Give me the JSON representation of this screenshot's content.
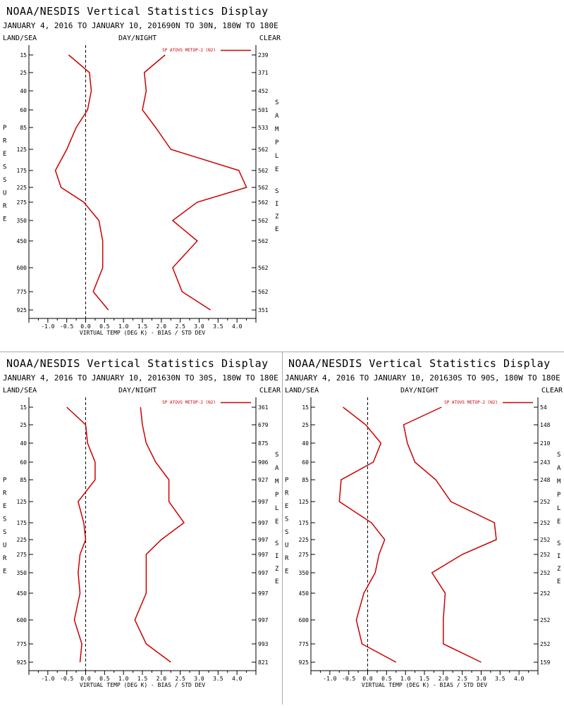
{
  "panels_common": {
    "title": "NOAA/NESDIS Vertical Statistics Display",
    "land_sea": "LAND/SEA",
    "day_night": "DAY/NIGHT",
    "clear": "CLEAR",
    "ylabel_letters": [
      "P",
      "R",
      "E",
      "S",
      "S",
      "U",
      "R",
      "E"
    ],
    "right_letters_1": [
      "S",
      "A",
      "M",
      "P",
      "L",
      "E"
    ],
    "right_letters_2": [
      "S",
      "I",
      "Z",
      "E"
    ],
    "xlabel": "VIRTUAL TEMP (DEG K) - BIAS / STD DEV",
    "x_ticks": [
      "-1.0",
      "-0.5",
      "0.0",
      "0.5",
      "1.0",
      "1.5",
      "2.0",
      "2.5",
      "3.0",
      "3.5",
      "4.0"
    ],
    "pressure_levels": [
      15,
      25,
      40,
      60,
      85,
      125,
      175,
      225,
      275,
      350,
      450,
      600,
      775,
      925
    ],
    "colors": {
      "series": "#cc0000",
      "axis": "#000000",
      "zero_line": "#000000",
      "divider": "#aaaaaa"
    }
  },
  "chart_data": [
    {
      "type": "line",
      "subtitle": "JANUARY 4, 2016 TO JANUARY 10, 201690N TO 30N, 180W TO 180E",
      "legend": "SP ATOVS METOP-2 (N2)",
      "xlim": [
        -1.5,
        4.5
      ],
      "sample_size": [
        "239",
        "371",
        "452",
        "501",
        "533",
        "562",
        "562",
        "562",
        "562",
        "562",
        "562",
        "562",
        "562",
        "351"
      ],
      "series": [
        {
          "role": "bias",
          "values": [
            -0.45,
            0.1,
            0.15,
            0.05,
            -0.25,
            -0.5,
            -0.8,
            -0.65,
            -0.05,
            0.35,
            0.45,
            0.45,
            0.2,
            0.6
          ]
        },
        {
          "role": "std_dev",
          "values": [
            2.1,
            1.55,
            1.6,
            1.5,
            1.85,
            2.25,
            4.05,
            4.25,
            2.95,
            2.3,
            2.95,
            2.3,
            2.55,
            3.3
          ]
        }
      ]
    },
    {
      "type": "line",
      "subtitle": "JANUARY 4, 2016 TO JANUARY 10, 201630N TO 30S, 180W TO 180E",
      "legend": "SP ATOVS METOP-2 (N2)",
      "xlim": [
        -1.5,
        4.5
      ],
      "sample_size": [
        "361",
        "679",
        "875",
        "906",
        "927",
        "997",
        "997",
        "997",
        "997",
        "997",
        "997",
        "997",
        "993",
        "821"
      ],
      "series": [
        {
          "role": "bias",
          "values": [
            -0.5,
            0.0,
            0.05,
            0.25,
            0.25,
            -0.2,
            -0.05,
            0.0,
            -0.15,
            -0.2,
            -0.15,
            -0.3,
            -0.1,
            -0.15
          ]
        },
        {
          "role": "std_dev",
          "values": [
            1.45,
            1.5,
            1.6,
            1.85,
            2.2,
            2.2,
            2.6,
            2.0,
            1.6,
            1.6,
            1.6,
            1.3,
            1.6,
            2.25
          ]
        }
      ]
    },
    {
      "type": "line",
      "subtitle": "JANUARY 4, 2016 TO JANUARY 10, 201630S TO 90S, 180W TO 180E",
      "legend": "SP ATOVS METOP-2 (N2)",
      "xlim": [
        -1.5,
        4.5
      ],
      "sample_size": [
        "54",
        "148",
        "210",
        "243",
        "248",
        "252",
        "252",
        "252",
        "252",
        "252",
        "252",
        "252",
        "252",
        "159"
      ],
      "series": [
        {
          "role": "bias",
          "values": [
            -0.65,
            -0.05,
            0.35,
            0.15,
            -0.7,
            -0.75,
            0.1,
            0.45,
            0.3,
            0.2,
            -0.1,
            -0.3,
            -0.15,
            0.75
          ]
        },
        {
          "role": "std_dev",
          "values": [
            1.95,
            0.95,
            1.05,
            1.25,
            1.8,
            2.2,
            3.35,
            3.4,
            2.5,
            1.7,
            2.05,
            2.0,
            2.0,
            3.0
          ]
        }
      ]
    }
  ]
}
